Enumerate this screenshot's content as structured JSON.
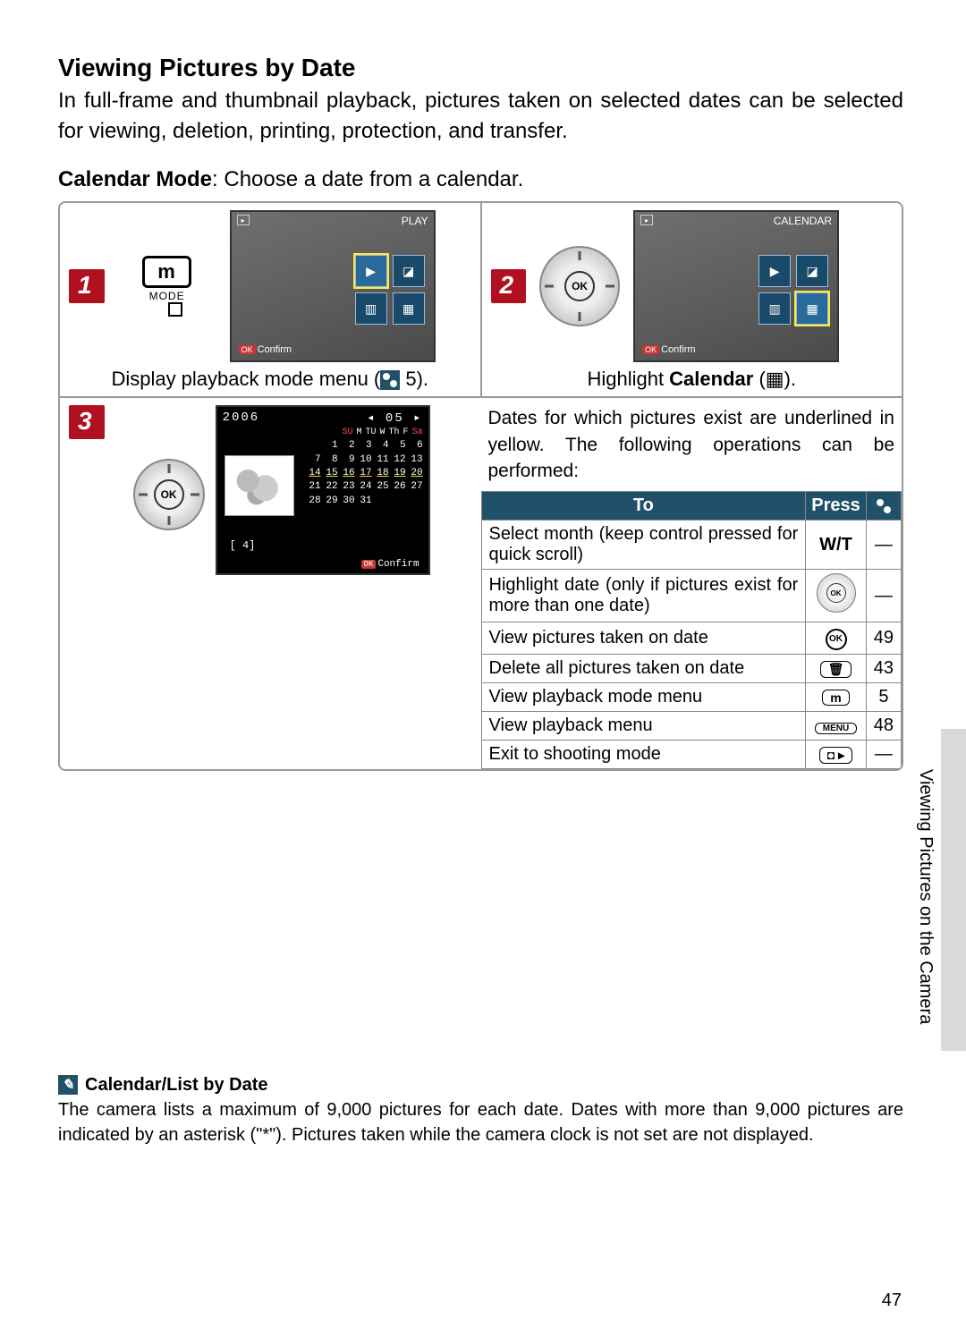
{
  "title": "Viewing Pictures by Date",
  "intro": "In full-frame and thumbnail playback, pictures taken on selected dates can be selected for viewing, deletion, printing, protection, and transfer.",
  "mode_label_bold": "Calendar Mode",
  "mode_label_rest": ": Choose a date from a calendar.",
  "steps": {
    "s1": {
      "num": "1",
      "mode_btn": "m",
      "mode_word": "MODE",
      "lcd_title": "PLAY",
      "confirm": "Confirm",
      "caption_pre": "Display playback mode menu (",
      "caption_post": " 5)."
    },
    "s2": {
      "num": "2",
      "lcd_title": "CALENDAR",
      "confirm": "Confirm",
      "caption_pre": "Highlight ",
      "caption_bold": "Calendar",
      "caption_post": " (",
      "caption_end": ")."
    },
    "s3": {
      "num": "3",
      "year": "2006",
      "month_badge": "05",
      "days": [
        "SU",
        "M",
        "TU",
        "W",
        "Th",
        "F",
        "Sa"
      ],
      "weeks": [
        [
          "",
          "1",
          "2",
          "3",
          "4",
          "5",
          "6"
        ],
        [
          "7",
          "8",
          "9",
          "10",
          "11",
          "12",
          "13"
        ],
        [
          "14",
          "15",
          "16",
          "17",
          "18",
          "19",
          "20"
        ],
        [
          "21",
          "22",
          "23",
          "24",
          "25",
          "26",
          "27"
        ],
        [
          "28",
          "29",
          "30",
          "31",
          "",
          "",
          ""
        ]
      ],
      "underlined": [
        "14",
        "15",
        "16",
        "17",
        "18",
        "19",
        "20"
      ],
      "count": "[     4]",
      "confirm": "Confirm"
    }
  },
  "desc": "Dates for which pictures exist are underlined in yellow.  The following operations can be performed:",
  "table": {
    "headers": {
      "to": "To",
      "press": "Press",
      "ref_icon": "reference"
    },
    "rows": [
      {
        "to": "Select month (keep control pressed for quick scroll)",
        "press": "W/T",
        "ref": "—",
        "press_type": "text"
      },
      {
        "to": "Highlight date (only if pictures exist for more than one date)",
        "press": "dial",
        "ref": "—",
        "press_type": "dial"
      },
      {
        "to": "View pictures taken on date",
        "press": "OK",
        "ref": "49",
        "press_type": "ok"
      },
      {
        "to": "Delete all pictures taken on date",
        "press": "trash",
        "ref": "43",
        "press_type": "btn",
        "btn_glyph": "🗑"
      },
      {
        "to": "View playback mode menu",
        "press": "m",
        "ref": "5",
        "press_type": "btn",
        "btn_glyph": "m"
      },
      {
        "to": "View playback menu",
        "press": "MENU",
        "ref": "48",
        "press_type": "btn",
        "btn_glyph": "MENU"
      },
      {
        "to": "Exit to shooting mode",
        "press": "shoot",
        "ref": "—",
        "press_type": "btn",
        "btn_glyph": "◘ ▸"
      }
    ]
  },
  "side_label": "Viewing Pictures on the Camera",
  "note": {
    "title": "Calendar/List by Date",
    "text": "The camera lists a maximum of 9,000 pictures for each date.  Dates with more than 9,000 pictures are indicated by an asterisk (\"*\").  Pictures taken while the camera clock is not set are not displayed."
  },
  "page_number": "47",
  "colors": {
    "accent_red": "#b01020",
    "header_blue": "#20506a",
    "border_gray": "#999999"
  }
}
